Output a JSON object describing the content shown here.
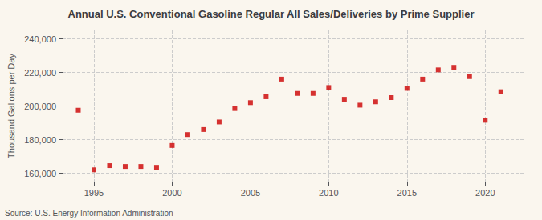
{
  "chart_data": {
    "type": "scatter",
    "title": "Annual U.S. Conventional Gasoline Regular All Sales/Deliveries by Prime Supplier",
    "ylabel": "Thousand Gallons per Day",
    "annotations": [
      "Source: U.S. Energy Information Administration"
    ],
    "x": [
      1994,
      1995,
      1996,
      1997,
      1998,
      1999,
      2000,
      2001,
      2002,
      2003,
      2004,
      2005,
      2006,
      2007,
      2008,
      2009,
      2010,
      2011,
      2012,
      2013,
      2014,
      2015,
      2016,
      2017,
      2018,
      2019,
      2020,
      2021
    ],
    "values": [
      197500,
      162000,
      164500,
      164000,
      164000,
      163500,
      176500,
      183000,
      186000,
      190500,
      198500,
      202000,
      205500,
      216000,
      207500,
      207500,
      211000,
      204000,
      200500,
      202500,
      205000,
      210500,
      216000,
      221500,
      223000,
      217500,
      191500,
      208500
    ],
    "color": "#cc0000",
    "marker": "square",
    "xlim": [
      1993.0,
      2022.5
    ],
    "ylim": [
      155000,
      245000
    ],
    "xticks": [
      1995,
      2000,
      2005,
      2010,
      2015,
      2020
    ],
    "yticks": [
      {
        "value": 160000,
        "label": "160,000"
      },
      {
        "value": 180000,
        "label": "180,000"
      },
      {
        "value": 200000,
        "label": "200,000"
      },
      {
        "value": 220000,
        "label": "220,000"
      },
      {
        "value": 240000,
        "label": "240,000"
      }
    ],
    "grid": true
  }
}
